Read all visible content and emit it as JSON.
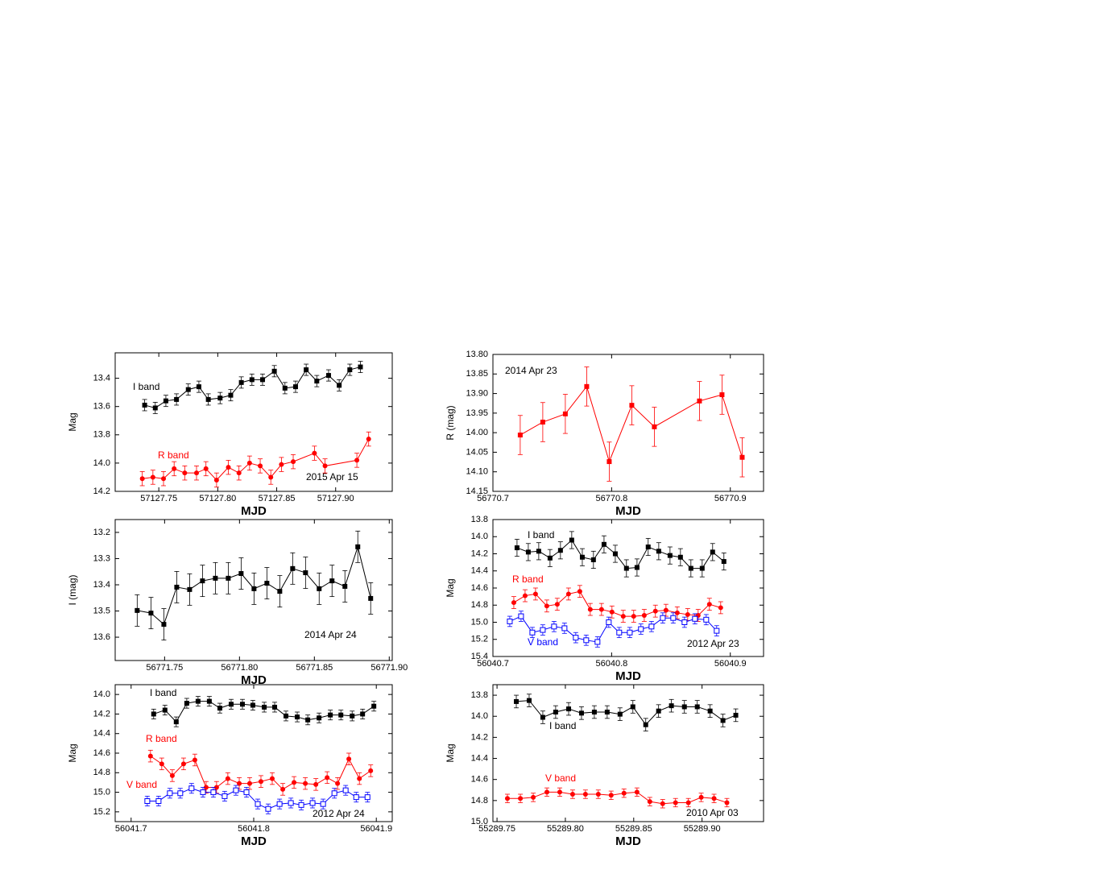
{
  "chart_data": [
    {
      "type": "line",
      "xlabel": "MJD",
      "ylabel": "Mag",
      "annotation": "2015 Apr 15",
      "xlim": [
        57127.713,
        57127.948
      ],
      "ylim": [
        13.22,
        14.2
      ],
      "y_inverted": true,
      "xticks": [
        57127.75,
        {
          "value": 57127.8,
          "label": "57127.80"
        },
        57127.85,
        {
          "value": 57127.9,
          "label": "57127.90"
        }
      ],
      "yticks": [
        13.4,
        13.6,
        13.8,
        {
          "value": 14.0,
          "label": "14.0"
        },
        14.2
      ],
      "series": [
        {
          "name": "I band",
          "color": "#000000",
          "marker": "square",
          "error": 0.04,
          "x": [
            57127.738,
            57127.747,
            57127.756,
            57127.765,
            57127.775,
            57127.784,
            57127.792,
            57127.802,
            57127.811,
            57127.82,
            57127.829,
            57127.838,
            57127.848,
            57127.857,
            57127.866,
            57127.875,
            57127.884,
            57127.894,
            57127.903,
            57127.912,
            57127.921
          ],
          "values": [
            13.59,
            13.61,
            13.56,
            13.55,
            13.48,
            13.46,
            13.55,
            13.54,
            13.52,
            13.43,
            13.41,
            13.41,
            13.35,
            13.47,
            13.46,
            13.34,
            13.42,
            13.38,
            13.45,
            13.34,
            13.32
          ]
        },
        {
          "name": "R band",
          "color": "#ff0000",
          "marker": "circle",
          "error": 0.05,
          "x": [
            57127.736,
            57127.745,
            57127.754,
            57127.763,
            57127.772,
            57127.782,
            57127.79,
            57127.799,
            57127.809,
            57127.818,
            57127.827,
            57127.836,
            57127.845,
            57127.854,
            57127.864,
            57127.882,
            57127.891,
            57127.918,
            57127.928
          ],
          "values": [
            14.11,
            14.1,
            14.11,
            14.04,
            14.07,
            14.07,
            14.04,
            14.12,
            14.03,
            14.07,
            14.0,
            14.02,
            14.1,
            14.01,
            13.99,
            13.93,
            14.02,
            13.98,
            13.83
          ]
        }
      ]
    },
    {
      "type": "line",
      "xlabel": "MJD",
      "ylabel": "R (mag)",
      "annotation": "2014 Apr 23",
      "xlim": [
        56770.7,
        56770.928
      ],
      "ylim": [
        13.8,
        14.15
      ],
      "y_inverted": true,
      "xticks": [
        56770.7,
        56770.8,
        56770.9
      ],
      "yticks": [
        {
          "value": 13.8,
          "label": "13.80"
        },
        13.85,
        {
          "value": 13.9,
          "label": "13.90"
        },
        13.95,
        {
          "value": 14.0,
          "label": "14.00"
        },
        14.05,
        {
          "value": 14.1,
          "label": "14.10"
        },
        14.15
      ],
      "series": [
        {
          "color": "#ff0000",
          "marker": "square",
          "error": 0.05,
          "x": [
            56770.723,
            56770.742,
            56770.761,
            56770.779,
            56770.798,
            56770.817,
            56770.836,
            56770.874,
            56770.893,
            56770.91
          ],
          "values": [
            14.006,
            13.973,
            13.952,
            13.882,
            14.074,
            13.93,
            13.985,
            13.919,
            13.903,
            14.063
          ]
        }
      ]
    },
    {
      "type": "line",
      "xlabel": "MJD",
      "ylabel": "I (mag)",
      "annotation": "2014 Apr 24",
      "xlim": [
        56771.717,
        56771.902
      ],
      "ylim": [
        13.151,
        13.689
      ],
      "y_inverted": true,
      "xticks": [
        56771.75,
        {
          "value": 56771.8,
          "label": "56771.80"
        },
        56771.85,
        {
          "value": 56771.9,
          "label": "56771.90"
        }
      ],
      "yticks": [
        13.2,
        13.3,
        13.4,
        13.5,
        13.6
      ],
      "series": [
        {
          "color": "#000000",
          "marker": "square",
          "error": 0.06,
          "x": [
            56771.7317,
            56771.7409,
            56771.7495,
            56771.7581,
            56771.7667,
            56771.7753,
            56771.7839,
            56771.7925,
            56771.8011,
            56771.8097,
            56771.8183,
            56771.8269,
            56771.8355,
            56771.8441,
            56771.8532,
            56771.8618,
            56771.8704,
            56771.879,
            56771.8876
          ],
          "values": [
            13.498,
            13.508,
            13.551,
            13.409,
            13.418,
            13.385,
            13.375,
            13.375,
            13.357,
            13.415,
            13.394,
            13.425,
            13.338,
            13.354,
            13.415,
            13.385,
            13.406,
            13.255,
            13.452
          ]
        }
      ]
    },
    {
      "type": "line",
      "xlabel": "MJD",
      "ylabel": "Mag",
      "annotation": "2012 Apr 23",
      "xlim": [
        56040.7,
        56040.928
      ],
      "ylim": [
        13.8,
        15.4
      ],
      "y_inverted": true,
      "xticks": [
        56040.7,
        56040.8,
        56040.9
      ],
      "yticks": [
        13.8,
        {
          "value": 14.0,
          "label": "14.0"
        },
        14.2,
        14.4,
        14.6,
        14.8,
        {
          "value": 15.0,
          "label": "15.0"
        },
        15.2,
        15.4
      ],
      "series": [
        {
          "name": "I band",
          "color": "#000000",
          "marker": "square",
          "error": 0.1,
          "x": [
            56040.7203,
            56040.7298,
            56040.7386,
            56040.7481,
            56040.7569,
            56040.7664,
            56040.7753,
            56040.7847,
            56040.7936,
            56040.8031,
            56040.8125,
            56040.8214,
            56040.8308,
            56040.8397,
            56040.8492,
            56040.858,
            56040.8668,
            56040.8763,
            56040.8851,
            56040.8946
          ],
          "values": [
            14.13,
            14.18,
            14.17,
            14.25,
            14.16,
            14.04,
            14.24,
            14.27,
            14.09,
            14.2,
            14.37,
            14.36,
            14.12,
            14.17,
            14.22,
            14.24,
            14.37,
            14.37,
            14.18,
            14.29
          ]
        },
        {
          "name": "R band",
          "color": "#ff0000",
          "marker": "circle",
          "error": 0.07,
          "x": [
            56040.7176,
            56040.7271,
            56040.7359,
            56040.7454,
            56040.7542,
            56040.7637,
            56040.7732,
            56040.782,
            56040.7915,
            56040.8003,
            56040.8098,
            56040.8186,
            56040.8275,
            56040.8369,
            56040.8458,
            56040.8553,
            56040.8641,
            56040.8729,
            56040.8824,
            56040.8919
          ],
          "values": [
            14.77,
            14.69,
            14.67,
            14.81,
            14.79,
            14.67,
            14.64,
            14.85,
            14.85,
            14.88,
            14.93,
            14.93,
            14.92,
            14.87,
            14.86,
            14.89,
            14.91,
            14.92,
            14.79,
            14.83
          ]
        },
        {
          "name": "V band",
          "color": "#0000ff",
          "marker": "open-square",
          "error": 0.06,
          "x": [
            56040.7142,
            56040.7237,
            56040.7332,
            56040.742,
            56040.7515,
            56040.7603,
            56040.7698,
            56040.7786,
            56040.7881,
            56040.7976,
            56040.8064,
            56040.8153,
            56040.8247,
            56040.8336,
            56040.8431,
            56040.8519,
            56040.8614,
            56040.8702,
            56040.8797,
            56040.8885
          ],
          "values": [
            14.99,
            14.93,
            15.12,
            15.09,
            15.05,
            15.07,
            15.18,
            15.21,
            15.23,
            15.0,
            15.12,
            15.12,
            15.08,
            15.05,
            14.95,
            14.95,
            15.0,
            14.96,
            14.97,
            15.1
          ]
        }
      ]
    },
    {
      "type": "line",
      "xlabel": "MJD",
      "ylabel": "Mag",
      "annotation": "2012 Apr 24",
      "xlim": [
        56041.687,
        56041.913
      ],
      "ylim": [
        13.9,
        15.3
      ],
      "y_inverted": true,
      "xticks": [
        56041.7,
        56041.8,
        56041.9
      ],
      "yticks": [
        {
          "value": 14.0,
          "label": "14.0"
        },
        14.2,
        14.4,
        14.6,
        14.8,
        {
          "value": 15.0,
          "label": "15.0"
        },
        15.2
      ],
      "series": [
        {
          "name": "I band",
          "color": "#000000",
          "marker": "square",
          "error": 0.05,
          "x": [
            56041.7184,
            56041.7276,
            56041.7368,
            56041.7454,
            56041.7546,
            56041.7638,
            56041.7724,
            56041.7816,
            56041.7908,
            56041.7993,
            56041.8086,
            56041.8171,
            56041.8263,
            56041.8355,
            56041.8441,
            56041.8533,
            56041.8625,
            56041.8711,
            56041.8803,
            56041.8888,
            56041.898
          ],
          "values": [
            14.2,
            14.16,
            14.28,
            14.09,
            14.07,
            14.07,
            14.14,
            14.1,
            14.1,
            14.11,
            14.13,
            14.13,
            14.22,
            14.23,
            14.26,
            14.24,
            14.21,
            14.21,
            14.22,
            14.2,
            14.12
          ]
        },
        {
          "name": "R band",
          "color": "#ff0000",
          "marker": "circle",
          "error": 0.06,
          "x": [
            56041.7158,
            56041.725,
            56041.7336,
            56041.7428,
            56041.752,
            56041.7612,
            56041.7697,
            56041.7789,
            56041.7882,
            56041.7967,
            56041.8059,
            56041.8151,
            56041.8237,
            56041.8329,
            56041.8421,
            56041.8507,
            56041.8599,
            56041.8684,
            56041.8776,
            56041.8862,
            56041.8954
          ],
          "values": [
            14.63,
            14.71,
            14.83,
            14.71,
            14.67,
            14.95,
            14.95,
            14.86,
            14.91,
            14.91,
            14.89,
            14.86,
            14.97,
            14.9,
            14.91,
            14.92,
            14.85,
            14.91,
            14.66,
            14.86,
            14.78
          ]
        },
        {
          "name": "V band",
          "name_color": "#ff0000",
          "color": "#0000ff",
          "marker": "open-square",
          "error": 0.05,
          "x": [
            56041.7132,
            56041.7224,
            56041.7316,
            56041.7401,
            56041.7493,
            56041.7586,
            56041.7671,
            56041.7763,
            56041.7855,
            56041.7941,
            56041.8033,
            56041.8118,
            56041.8211,
            56041.8303,
            56041.8388,
            56041.848,
            56041.8566,
            56041.8658,
            56041.875,
            56041.8836,
            56041.8928
          ],
          "values": [
            15.09,
            15.09,
            15.01,
            15.01,
            14.96,
            15.0,
            15.0,
            15.04,
            14.98,
            15.0,
            15.12,
            15.17,
            15.12,
            15.11,
            15.13,
            15.11,
            15.12,
            15.01,
            14.98,
            15.05,
            15.05
          ]
        }
      ]
    },
    {
      "type": "line",
      "xlabel": "MJD",
      "ylabel": "Mag",
      "annotation": "2010 Apr 03",
      "xlim": [
        55289.747,
        55289.945
      ],
      "ylim": [
        13.7,
        15.0
      ],
      "y_inverted": true,
      "xticks": [
        55289.75,
        {
          "value": 55289.8,
          "label": "55289.80"
        },
        55289.85,
        {
          "value": 55289.9,
          "label": "55289.90"
        }
      ],
      "yticks": [
        13.8,
        {
          "value": 14.0,
          "label": "14.0"
        },
        14.2,
        14.4,
        14.6,
        14.8,
        {
          "value": 15.0,
          "label": "15.0"
        }
      ],
      "series": [
        {
          "name": "I band",
          "color": "#000000",
          "marker": "square",
          "error": 0.06,
          "x": [
            55289.7641,
            55289.7735,
            55289.7835,
            55289.7929,
            55289.8024,
            55289.8118,
            55289.8212,
            55289.8306,
            55289.84,
            55289.8494,
            55289.8588,
            55289.8682,
            55289.8776,
            55289.8871,
            55289.8965,
            55289.9059,
            55289.9153,
            55289.9247
          ],
          "values": [
            13.86,
            13.85,
            14.01,
            13.96,
            13.93,
            13.97,
            13.96,
            13.96,
            13.98,
            13.91,
            14.08,
            13.95,
            13.9,
            13.91,
            13.91,
            13.95,
            14.04,
            13.99
          ]
        },
        {
          "name": "V band",
          "color": "#ff0000",
          "marker": "circle",
          "error": 0.04,
          "x": [
            55289.7576,
            55289.7671,
            55289.7765,
            55289.7865,
            55289.7959,
            55289.8053,
            55289.8147,
            55289.8241,
            55289.8335,
            55289.8429,
            55289.8524,
            55289.8618,
            55289.8712,
            55289.8806,
            55289.89,
            55289.8994,
            55289.9088,
            55289.9182
          ],
          "values": [
            14.78,
            14.78,
            14.77,
            14.72,
            14.72,
            14.74,
            14.74,
            14.74,
            14.75,
            14.73,
            14.72,
            14.81,
            14.83,
            14.82,
            14.82,
            14.77,
            14.78,
            14.82
          ]
        }
      ]
    }
  ]
}
